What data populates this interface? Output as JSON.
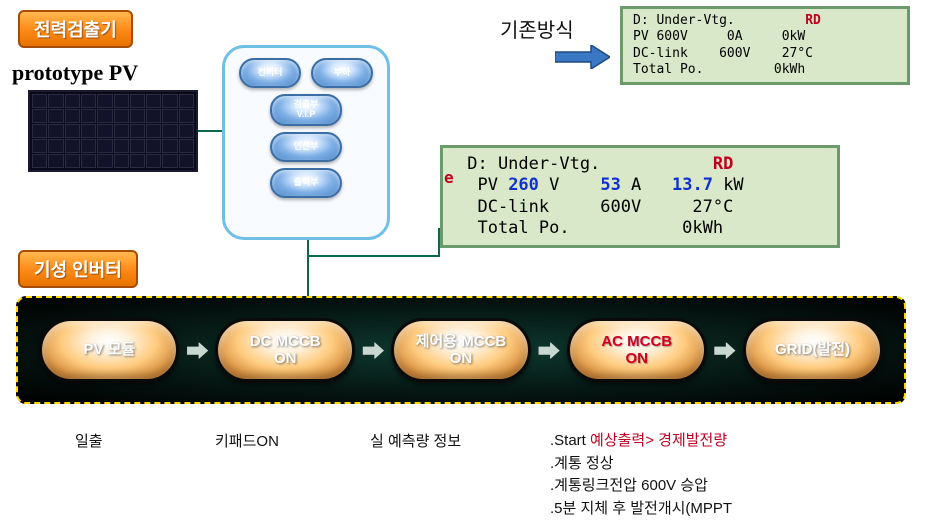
{
  "badges": {
    "detector": "전력검출기",
    "inverter": "기성 인버터"
  },
  "prototype_label": "prototype PV",
  "existing_label": "기존방식",
  "hub": {
    "row1": [
      "컨버터",
      "부하"
    ],
    "row2": "검출부\nV.I.P",
    "row3": "연산부",
    "row4": "출력부"
  },
  "lcd_old": {
    "font_size": 13,
    "background": "#d9e8c9",
    "border": "#6b9b6b",
    "rows": [
      [
        [
          "blk",
          "D: Under-Vtg.         "
        ],
        [
          "red",
          "RD"
        ]
      ],
      [
        [
          "blk",
          "PV 600V     0A     0kW"
        ]
      ],
      [
        [
          "blk",
          "DC-link    600V    27°C"
        ]
      ],
      [
        [
          "blk",
          "Total Po.         0kWh"
        ]
      ]
    ]
  },
  "lcd_new": {
    "font_size": 17,
    "background": "#d9e8c9",
    "border": "#6b9b6b",
    "e_marker": "e",
    "rows": [
      [
        [
          "blk",
          " D: Under-Vtg.           "
        ],
        [
          "red",
          "RD"
        ]
      ],
      [
        [
          "blk",
          "  PV "
        ],
        [
          "blue",
          "260"
        ],
        [
          "blk",
          " V    "
        ],
        [
          "blue",
          "53"
        ],
        [
          "blk",
          " A   "
        ],
        [
          "blue",
          "13.7"
        ],
        [
          "blk",
          " kW"
        ]
      ],
      [
        [
          "blk",
          "  DC-link     600V     27°C"
        ]
      ],
      [
        [
          "blk",
          "  Total Po.           0kWh"
        ]
      ]
    ]
  },
  "flow": {
    "nodes": [
      {
        "label": "PV 모듈",
        "color": "white"
      },
      {
        "label": "DC MCCB\nON",
        "color": "white"
      },
      {
        "label": "제어용 MCCB\nON",
        "color": "white"
      },
      {
        "label": "AC MCCB\nON",
        "color": "red"
      },
      {
        "label": "GRID(발전)",
        "color": "white"
      }
    ],
    "arrow_glyph": "⮕"
  },
  "captions": {
    "c1": "일출",
    "c2": "키패드ON",
    "c3": "실 예측량 정보",
    "c4_lines": [
      {
        "pre": ".Start ",
        "hl": "예상출력> 경제발전량",
        "post": ""
      },
      {
        "pre": ".계통 정상",
        "hl": "",
        "post": ""
      },
      {
        "pre": ".계통링크전압 600V 승압",
        "hl": "",
        "post": ""
      },
      {
        "pre": ".5분 지체 후 발전개시(MPPT",
        "hl": "",
        "post": ""
      }
    ]
  },
  "arrow_existing": {
    "fill": "#3a78c4",
    "stroke": "#1f4b80"
  },
  "pv_panel": {
    "cols": 10,
    "rows": 5
  }
}
